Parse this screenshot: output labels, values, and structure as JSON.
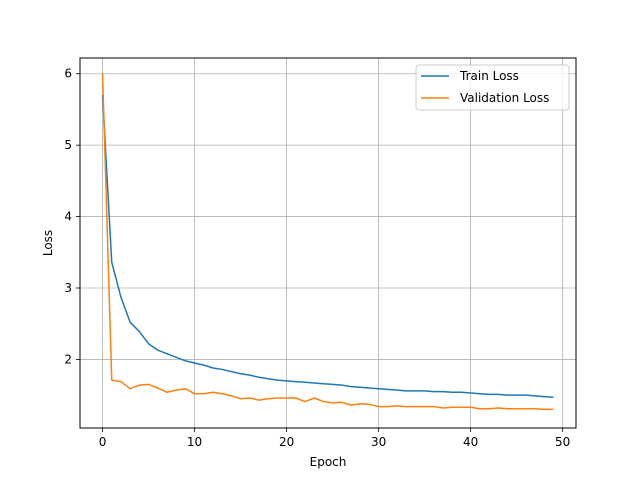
{
  "chart_data": {
    "type": "line",
    "title": "",
    "xlabel": "Epoch",
    "ylabel": "Loss",
    "xlim": [
      -2.45,
      51.45
    ],
    "ylim": [
      1.04,
      6.22
    ],
    "xticks": [
      0,
      10,
      20,
      30,
      40,
      50
    ],
    "yticks": [
      2,
      3,
      4,
      5,
      6
    ],
    "grid": true,
    "legend_position": "top-right",
    "x": [
      0,
      1,
      2,
      3,
      4,
      5,
      6,
      7,
      8,
      9,
      10,
      11,
      12,
      13,
      14,
      15,
      16,
      17,
      18,
      19,
      20,
      21,
      22,
      23,
      24,
      25,
      26,
      27,
      28,
      29,
      30,
      31,
      32,
      33,
      34,
      35,
      36,
      37,
      38,
      39,
      40,
      41,
      42,
      43,
      44,
      45,
      46,
      47,
      48,
      49
    ],
    "series": [
      {
        "name": "Train Loss",
        "color": "#1f77b4",
        "values": [
          5.7,
          3.36,
          2.87,
          2.52,
          2.39,
          2.22,
          2.13,
          2.08,
          2.03,
          1.98,
          1.95,
          1.92,
          1.88,
          1.86,
          1.83,
          1.8,
          1.78,
          1.75,
          1.73,
          1.71,
          1.7,
          1.69,
          1.68,
          1.67,
          1.66,
          1.65,
          1.64,
          1.62,
          1.61,
          1.6,
          1.59,
          1.58,
          1.57,
          1.56,
          1.56,
          1.56,
          1.55,
          1.55,
          1.54,
          1.54,
          1.53,
          1.52,
          1.51,
          1.51,
          1.5,
          1.5,
          1.5,
          1.49,
          1.48,
          1.47
        ]
      },
      {
        "name": "Validation Loss",
        "color": "#ff7f0e",
        "values": [
          6.0,
          1.71,
          1.69,
          1.59,
          1.64,
          1.65,
          1.6,
          1.54,
          1.57,
          1.59,
          1.52,
          1.52,
          1.54,
          1.52,
          1.49,
          1.45,
          1.46,
          1.43,
          1.45,
          1.46,
          1.46,
          1.46,
          1.41,
          1.46,
          1.41,
          1.39,
          1.4,
          1.36,
          1.38,
          1.37,
          1.34,
          1.34,
          1.35,
          1.34,
          1.34,
          1.34,
          1.34,
          1.32,
          1.33,
          1.33,
          1.33,
          1.31,
          1.31,
          1.32,
          1.31,
          1.31,
          1.31,
          1.31,
          1.3,
          1.3
        ]
      }
    ]
  }
}
